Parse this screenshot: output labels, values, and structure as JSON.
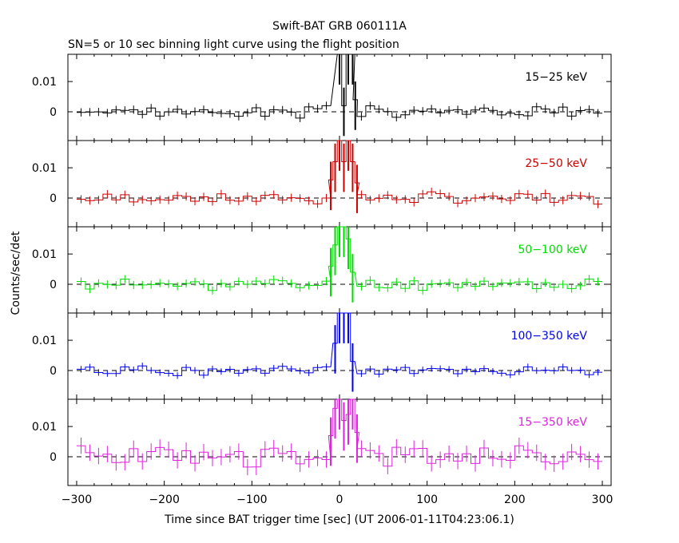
{
  "title": "Swift-BAT GRB 060111A",
  "subtitle": "SN=5 or 10 sec binning light curve using the flight position",
  "chart_data": {
    "type": "line",
    "title": "Swift-BAT GRB 060111A",
    "subtitle": "SN=5 or 10 sec binning light curve using the flight position",
    "xlabel": "Time since BAT trigger time [sec] (UT 2006-01-11T04:23:06.1)",
    "ylabel": "Counts/sec/det",
    "xlim": [
      -310,
      310
    ],
    "ylim": [
      -0.0095,
      0.019
    ],
    "x_ticks": [
      -300,
      -200,
      -100,
      0,
      100,
      200,
      300
    ],
    "x_tick_labels": [
      "−300",
      "−200",
      "−100",
      "0",
      "100",
      "200",
      "300"
    ],
    "y_ticks": [
      0,
      0.01
    ],
    "y_tick_labels": [
      "0",
      "0.01"
    ],
    "zero_line": "dashed",
    "panels": [
      {
        "label": "15−25 keV",
        "color": "#000000",
        "noise_level": 0.0015,
        "seed": 3,
        "peak": [
          {
            "t": 0,
            "v": 0.019
          },
          {
            "t": 5,
            "v": 0.002
          },
          {
            "t": 10,
            "v": 0.019
          },
          {
            "t": 15,
            "v": 0.019
          },
          {
            "t": 18,
            "v": 0.004
          }
        ]
      },
      {
        "label": "25−50 keV",
        "color": "#cc0000",
        "noise_level": 0.0015,
        "seed": 7,
        "peak": [
          {
            "t": -10,
            "v": 0.006
          },
          {
            "t": -5,
            "v": 0.012
          },
          {
            "t": 0,
            "v": 0.019
          },
          {
            "t": 5,
            "v": 0.012
          },
          {
            "t": 10,
            "v": 0.019
          },
          {
            "t": 15,
            "v": 0.012
          },
          {
            "t": 20,
            "v": 0.005
          }
        ]
      },
      {
        "label": "50−100 keV",
        "color": "#00dd00",
        "noise_level": 0.0015,
        "seed": 11,
        "peak": [
          {
            "t": -10,
            "v": 0.006
          },
          {
            "t": -5,
            "v": 0.013
          },
          {
            "t": 0,
            "v": 0.019
          },
          {
            "t": 5,
            "v": 0.019
          },
          {
            "t": 10,
            "v": 0.015
          },
          {
            "t": 15,
            "v": 0.004
          }
        ]
      },
      {
        "label": "100−350 keV",
        "color": "#0000ee",
        "noise_level": 0.0012,
        "seed": 19,
        "peak": [
          {
            "t": -5,
            "v": 0.009
          },
          {
            "t": 0,
            "v": 0.019
          },
          {
            "t": 5,
            "v": 0.019
          },
          {
            "t": 10,
            "v": 0.019
          },
          {
            "t": 15,
            "v": 0.003
          }
        ]
      },
      {
        "label": "15−350 keV",
        "color": "#dd22dd",
        "noise_level": 0.003,
        "seed": 23,
        "peak": [
          {
            "t": -10,
            "v": 0.007
          },
          {
            "t": -5,
            "v": 0.016
          },
          {
            "t": 0,
            "v": 0.019
          },
          {
            "t": 5,
            "v": 0.012
          },
          {
            "t": 10,
            "v": 0.014
          },
          {
            "t": 15,
            "v": 0.019
          },
          {
            "t": 20,
            "v": 0.008
          }
        ]
      }
    ]
  }
}
